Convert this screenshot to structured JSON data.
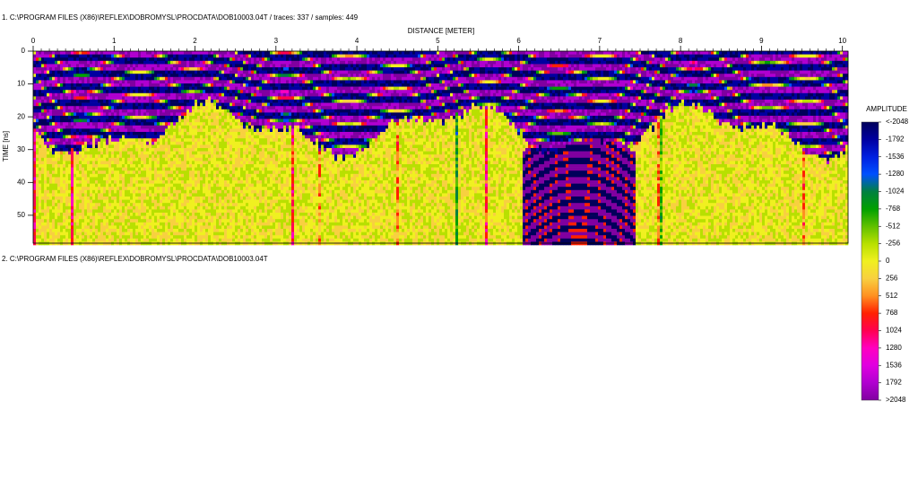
{
  "header1": "1. C:\\PROGRAM FILES (X86)\\REFLEX\\DOBROMYSL\\PROCDATA\\DOB10003.04T  / traces: 337 / samples: 449",
  "header2": "2. C:\\PROGRAM FILES (X86)\\REFLEX\\DOBROMYSL\\PROCDATA\\DOB10003.04T",
  "chart_data": {
    "type": "radargram",
    "x_label": "DISTANCE [METER]",
    "y_label": "TIME [ns]",
    "xlim": [
      0,
      10.07
    ],
    "xticks": [
      0,
      1,
      2,
      3,
      4,
      5,
      6,
      7,
      8,
      9,
      10
    ],
    "ylim": [
      0,
      58.5
    ],
    "yticks": [
      0,
      10,
      20,
      30,
      40,
      50
    ],
    "colorbar": {
      "title": "AMPLITUDE",
      "ticks": [
        {
          "value": -2048,
          "label": "<-2048"
        },
        -1792,
        -1536,
        -1280,
        -1024,
        -768,
        -512,
        -256,
        0,
        256,
        512,
        768,
        1024,
        1280,
        1536,
        1792,
        {
          "value": 2048,
          "label": ">2048"
        }
      ],
      "colors": [
        "#00005a",
        "#0000a0",
        "#0020e0",
        "#0050ff",
        "#008040",
        "#00a000",
        "#60c000",
        "#b8e000",
        "#f0f020",
        "#f8d040",
        "#ff9020",
        "#ff2000",
        "#ff0050",
        "#ff00c0",
        "#e000e0",
        "#b000d0",
        "#8000a0"
      ]
    }
  }
}
